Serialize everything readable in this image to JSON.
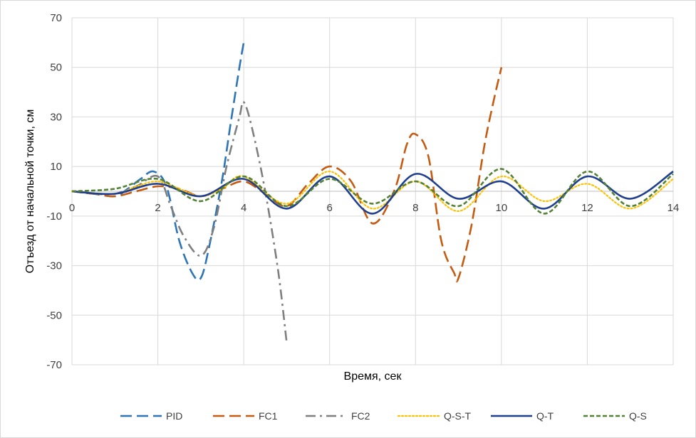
{
  "chart_data": {
    "type": "line",
    "title": "",
    "xlabel": "Время, сек",
    "ylabel": "Отъезд от начальной точки, см",
    "xlim": [
      0,
      14
    ],
    "ylim": [
      -70,
      70
    ],
    "x_ticks": [
      0,
      2,
      4,
      6,
      8,
      10,
      12,
      14
    ],
    "y_ticks": [
      -70,
      -50,
      -30,
      -10,
      10,
      30,
      50,
      70
    ],
    "x_tick_labels": [
      "0",
      "2",
      "4",
      "6",
      "8",
      "10",
      "12",
      "14"
    ],
    "y_tick_labels": [
      "-70",
      "-50",
      "-30",
      "-10",
      "10",
      "30",
      "50",
      "70"
    ],
    "grid": true,
    "legend": "bottom",
    "series": [
      {
        "name": "PID",
        "color": "#2e75b6",
        "dash": "long-dash",
        "points": [
          [
            0,
            0
          ],
          [
            0.5,
            -1
          ],
          [
            1,
            -2
          ],
          [
            1.3,
            1
          ],
          [
            1.6,
            5
          ],
          [
            1.9,
            8
          ],
          [
            2.2,
            2
          ],
          [
            2.5,
            -20
          ],
          [
            2.8,
            -33
          ],
          [
            3,
            -35
          ],
          [
            3.2,
            -22
          ],
          [
            3.5,
            5
          ],
          [
            3.7,
            28
          ],
          [
            3.9,
            50
          ],
          [
            4,
            60
          ]
        ]
      },
      {
        "name": "FC1",
        "color": "#c55a11",
        "dash": "long-dash",
        "points": [
          [
            0,
            0
          ],
          [
            0.5,
            -1
          ],
          [
            1,
            -2
          ],
          [
            1.5,
            0
          ],
          [
            2,
            2
          ],
          [
            2.5,
            1
          ],
          [
            3,
            -2
          ],
          [
            3.5,
            1
          ],
          [
            4,
            4
          ],
          [
            4.5,
            -1
          ],
          [
            5,
            -6
          ],
          [
            5.5,
            3
          ],
          [
            6,
            10
          ],
          [
            6.5,
            4
          ],
          [
            7,
            -13
          ],
          [
            7.5,
            0
          ],
          [
            7.8,
            19
          ],
          [
            8,
            23
          ],
          [
            8.3,
            14
          ],
          [
            8.6,
            -20
          ],
          [
            8.9,
            -33
          ],
          [
            9,
            -35
          ],
          [
            9.3,
            -14
          ],
          [
            9.6,
            18
          ],
          [
            9.8,
            35
          ],
          [
            10,
            50
          ]
        ]
      },
      {
        "name": "FC2",
        "color": "#7f7f7f",
        "dash": "dash-dot",
        "points": [
          [
            0,
            0
          ],
          [
            0.5,
            -1
          ],
          [
            1,
            -1
          ],
          [
            1.5,
            2
          ],
          [
            2,
            6
          ],
          [
            2.3,
            -6
          ],
          [
            2.6,
            -18
          ],
          [
            3,
            -26
          ],
          [
            3.3,
            -15
          ],
          [
            3.6,
            10
          ],
          [
            3.9,
            30
          ],
          [
            4,
            36
          ],
          [
            4.2,
            25
          ],
          [
            4.5,
            0
          ],
          [
            4.8,
            -32
          ],
          [
            5,
            -61
          ]
        ]
      },
      {
        "name": "Q-S-T",
        "color": "#ffc000",
        "dash": "dotted",
        "points": [
          [
            0,
            0
          ],
          [
            1,
            -1
          ],
          [
            1.5,
            2
          ],
          [
            2,
            4
          ],
          [
            2.5,
            1
          ],
          [
            3,
            -2
          ],
          [
            3.5,
            1
          ],
          [
            4,
            6
          ],
          [
            5,
            -5
          ],
          [
            6,
            8
          ],
          [
            7,
            -7
          ],
          [
            8,
            4
          ],
          [
            9,
            -8
          ],
          [
            10,
            6
          ],
          [
            11,
            -4
          ],
          [
            12,
            3
          ],
          [
            13,
            -7
          ],
          [
            14,
            5
          ]
        ]
      },
      {
        "name": "Q-T",
        "color": "#1f3f8f",
        "dash": "solid",
        "points": [
          [
            0,
            0
          ],
          [
            1,
            -1
          ],
          [
            2,
            3
          ],
          [
            3,
            -2
          ],
          [
            4,
            5
          ],
          [
            5,
            -7
          ],
          [
            6,
            6
          ],
          [
            7,
            -9
          ],
          [
            8,
            7
          ],
          [
            9,
            -3
          ],
          [
            10,
            4
          ],
          [
            11,
            -7
          ],
          [
            12,
            6
          ],
          [
            13,
            -3
          ],
          [
            14,
            8
          ]
        ]
      },
      {
        "name": "Q-S",
        "color": "#548235",
        "dash": "short-dash",
        "points": [
          [
            0,
            0
          ],
          [
            1,
            1
          ],
          [
            2,
            5
          ],
          [
            3,
            -4
          ],
          [
            4,
            6
          ],
          [
            5,
            -6
          ],
          [
            6,
            5
          ],
          [
            7,
            -5
          ],
          [
            8,
            4
          ],
          [
            9,
            -6
          ],
          [
            10,
            9
          ],
          [
            11,
            -9
          ],
          [
            12,
            8
          ],
          [
            13,
            -6
          ],
          [
            14,
            7
          ]
        ]
      }
    ]
  }
}
